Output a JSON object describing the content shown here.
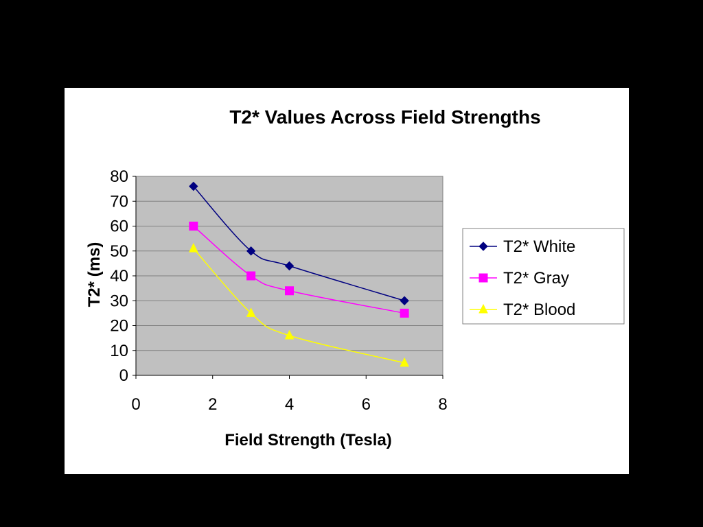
{
  "colors": {
    "page_background": "#000000",
    "panel_background": "#ffffff",
    "plot_area": "#c0c0c0",
    "gridline": "#808080"
  },
  "chart_data": {
    "type": "scatter",
    "title": "T2* Values Across Field Strengths",
    "xlabel": "Field Strength (Tesla)",
    "ylabel": "T2* (ms)",
    "xlim": [
      0,
      8
    ],
    "ylim": [
      0,
      80
    ],
    "x_ticks": [
      0,
      2,
      4,
      6,
      8
    ],
    "y_ticks": [
      0,
      10,
      20,
      30,
      40,
      50,
      60,
      70,
      80
    ],
    "grid": "horizontal",
    "legend_position": "right",
    "series": [
      {
        "name": "T2* White",
        "marker": "diamond",
        "color": "#000080",
        "points": [
          [
            1.5,
            76
          ],
          [
            3,
            50
          ],
          [
            4,
            44
          ],
          [
            7,
            30
          ]
        ]
      },
      {
        "name": "T2* Gray",
        "marker": "square",
        "color": "#ff00ff",
        "points": [
          [
            1.5,
            60
          ],
          [
            3,
            40
          ],
          [
            4,
            34
          ],
          [
            7,
            25
          ]
        ]
      },
      {
        "name": "T2* Blood",
        "marker": "triangle",
        "color": "#ffff00",
        "points": [
          [
            1.5,
            51
          ],
          [
            3,
            25
          ],
          [
            4,
            16
          ],
          [
            7,
            5
          ]
        ]
      }
    ]
  }
}
